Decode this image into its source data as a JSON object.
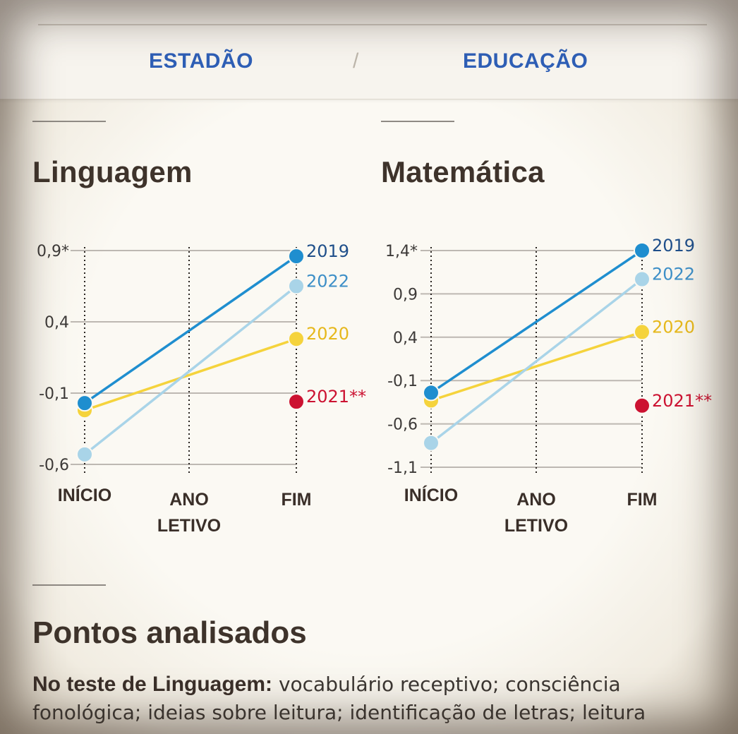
{
  "header": {
    "left_label": "ESTADÃO",
    "separator": "/",
    "right_label": "EDUCAÇÃO"
  },
  "chart_data": [
    {
      "type": "line",
      "title": "Linguagem",
      "categories": [
        "INÍCIO",
        "ANO LETIVO",
        "FIM"
      ],
      "y_ticks": [
        "0,9*",
        "0,4",
        "-0,1",
        "-0,6"
      ],
      "y_tick_values": [
        0.9,
        0.4,
        -0.1,
        -0.6
      ],
      "ylim": [
        -0.6,
        0.9
      ],
      "series": [
        {
          "name": "2019",
          "values": [
            -0.17,
            null,
            0.86
          ],
          "color": "#1f8ecf",
          "text_color": "#1f4f8a"
        },
        {
          "name": "2022",
          "values": [
            -0.53,
            null,
            0.65
          ],
          "color": "#a9d4e8",
          "text_color": "#3d8fc7"
        },
        {
          "name": "2020",
          "values": [
            -0.22,
            null,
            0.28
          ],
          "color": "#f5d33c",
          "text_color": "#e6b81c"
        },
        {
          "name": "2021**",
          "values": [
            null,
            null,
            -0.16
          ],
          "color": "#cc1231",
          "text_color": "#cc1231"
        }
      ]
    },
    {
      "type": "line",
      "title": "Matemática",
      "categories": [
        "INÍCIO",
        "ANO LETIVO",
        "FIM"
      ],
      "y_ticks": [
        "1,4*",
        "0,9",
        "0,4",
        "-0,1",
        "-0,6",
        "-1,1"
      ],
      "y_tick_values": [
        1.4,
        0.9,
        0.4,
        -0.1,
        -0.6,
        -1.1
      ],
      "ylim": [
        -1.1,
        1.4
      ],
      "series": [
        {
          "name": "2019",
          "values": [
            -0.24,
            null,
            1.4
          ],
          "color": "#1f8ecf",
          "text_color": "#1f4f8a"
        },
        {
          "name": "2022",
          "values": [
            -0.82,
            null,
            1.07
          ],
          "color": "#a9d4e8",
          "text_color": "#3d8fc7"
        },
        {
          "name": "2020",
          "values": [
            -0.33,
            null,
            0.46
          ],
          "color": "#f5d33c",
          "text_color": "#e6b81c"
        },
        {
          "name": "2021**",
          "values": [
            null,
            null,
            -0.39
          ],
          "color": "#cc1231",
          "text_color": "#cc1231"
        }
      ]
    }
  ],
  "section": {
    "title": "Pontos analisados",
    "lead": "No teste de Linguagem:",
    "text": " vocabulário receptivo; consciência fonológica; ideias sobre leitura; identificação de letras; leitura"
  }
}
